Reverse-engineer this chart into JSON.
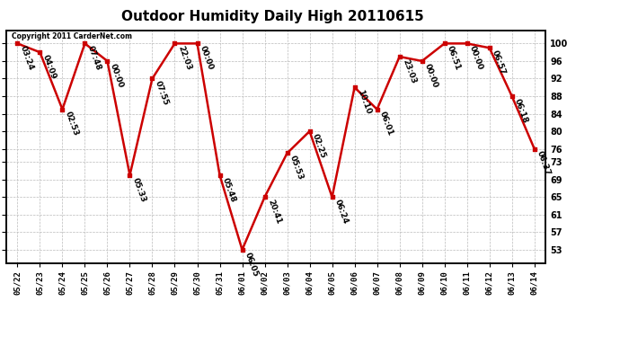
{
  "title": "Outdoor Humidity Daily High 20110615",
  "dates": [
    "05/22",
    "05/23",
    "05/24",
    "05/25",
    "05/26",
    "05/27",
    "05/28",
    "05/29",
    "05/30",
    "05/31",
    "06/01",
    "06/02",
    "06/03",
    "06/04",
    "06/05",
    "06/06",
    "06/07",
    "06/08",
    "06/09",
    "06/10",
    "06/11",
    "06/12",
    "06/13",
    "06/14"
  ],
  "values": [
    100,
    98,
    85,
    100,
    96,
    70,
    92,
    100,
    100,
    70,
    53,
    65,
    75,
    80,
    65,
    90,
    85,
    97,
    96,
    100,
    100,
    99,
    88,
    76
  ],
  "labels": [
    "03:24",
    "04:09",
    "02:53",
    "07:48",
    "00:00",
    "05:33",
    "07:55",
    "22:03",
    "00:00",
    "05:48",
    "06:05",
    "20:41",
    "05:53",
    "02:25",
    "06:24",
    "10:10",
    "06:01",
    "23:03",
    "00:00",
    "06:51",
    "00:00",
    "06:57",
    "06:18",
    "06:37"
  ],
  "line_color": "#cc0000",
  "marker_color": "#cc0000",
  "bg_color": "#ffffff",
  "plot_bg_color": "#ffffff",
  "grid_color": "#bbbbbb",
  "copyright_text": "Copyright 2011 CarderNet.com",
  "yticks": [
    53,
    57,
    61,
    65,
    69,
    73,
    76,
    80,
    84,
    88,
    92,
    96,
    100
  ],
  "ylim": [
    50,
    103
  ],
  "title_fontsize": 11,
  "label_fontsize": 6.5,
  "tick_fontsize": 7,
  "xtick_fontsize": 6.5
}
